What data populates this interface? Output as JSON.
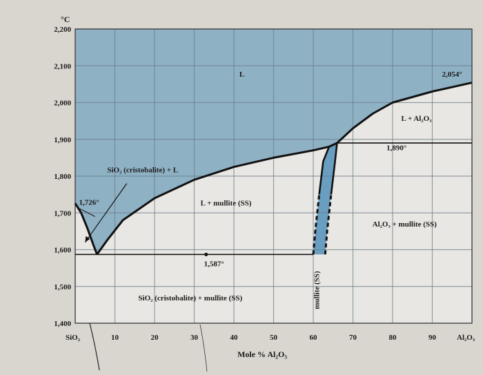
{
  "chart_data": {
    "type": "phase-diagram",
    "title": "",
    "xlabel": "Mole % Al₂O₃",
    "ylabel": "°C",
    "xlim": [
      0,
      100
    ],
    "ylim": [
      1400,
      2200
    ],
    "grid": true,
    "x_tick_labels": [
      {
        "x": 0,
        "label": "SiO₂"
      },
      {
        "x": 10,
        "label": "10"
      },
      {
        "x": 20,
        "label": "20"
      },
      {
        "x": 30,
        "label": "30"
      },
      {
        "x": 40,
        "label": "40"
      },
      {
        "x": 50,
        "label": "50"
      },
      {
        "x": 60,
        "label": "60"
      },
      {
        "x": 70,
        "label": "70"
      },
      {
        "x": 80,
        "label": "80"
      },
      {
        "x": 90,
        "label": "90"
      },
      {
        "x": 100,
        "label": "Al₂O₃"
      }
    ],
    "y_ticks": [
      1400,
      1500,
      1600,
      1700,
      1800,
      1900,
      2000,
      2100,
      2200
    ],
    "y_tick_labels": [
      "1,400",
      "1,500",
      "1,600",
      "1,700",
      "1,800",
      "1,900",
      "2,000",
      "2,100",
      "2,200"
    ],
    "curves": [
      {
        "name": "",
        "points": [
          [
            0,
            1726
          ],
          [
            1.5,
            1700
          ],
          [
            3,
            1660
          ],
          [
            4.5,
            1615
          ],
          [
            5.5,
            1587
          ]
        ]
      },
      {
        "name": "",
        "points": [
          [
            5.5,
            1587
          ],
          [
            8,
            1625
          ],
          [
            12,
            1680
          ],
          [
            20,
            1740
          ],
          [
            30,
            1790
          ],
          [
            40,
            1825
          ],
          [
            50,
            1850
          ],
          [
            60,
            1870
          ],
          [
            64,
            1880
          ],
          [
            66,
            1890
          ]
        ]
      },
      {
        "name": "",
        "points": [
          [
            66,
            1890
          ],
          [
            70,
            1930
          ],
          [
            75,
            1970
          ],
          [
            80,
            2000
          ],
          [
            90,
            2030
          ],
          [
            100,
            2054
          ]
        ]
      },
      {
        "name": "",
        "points": [
          [
            60,
            1587
          ],
          [
            60.5,
            1650
          ],
          [
            61.5,
            1750
          ],
          [
            62.5,
            1840
          ],
          [
            64,
            1880
          ],
          [
            66,
            1890
          ]
        ]
      },
      {
        "name": "",
        "points": [
          [
            63,
            1587
          ],
          [
            63.5,
            1650
          ],
          [
            64.5,
            1750
          ],
          [
            65.5,
            1840
          ],
          [
            66,
            1890
          ]
        ]
      }
    ],
    "horizontal_lines": [
      {
        "value": 1587,
        "x_from": 0,
        "x_to": 60
      },
      {
        "value": 1890,
        "x_from": 66,
        "x_to": 100
      }
    ],
    "region_labels": [
      {
        "text": "L",
        "x": 42,
        "y": 2070
      },
      {
        "text": "2,054°",
        "x": 95,
        "y": 2070
      },
      {
        "text": "L + Al₂O₃",
        "x": 86,
        "y": 1950
      },
      {
        "text": "1,890°",
        "x": 81,
        "y": 1870
      },
      {
        "text": "SiO₂ (cristobalite) + L",
        "x": 17,
        "y": 1810
      },
      {
        "text": "1,726°",
        "x": 3.5,
        "y": 1722
      },
      {
        "text": "L + mullite (SS)",
        "x": 38,
        "y": 1720
      },
      {
        "text": "Al₂O₃ + mullite (SS)",
        "x": 83,
        "y": 1663
      },
      {
        "text": "1,587°",
        "x": 35,
        "y": 1555
      },
      {
        "text": "SiO₂ (cristobalite) + mullite (SS)",
        "x": 29,
        "y": 1462
      },
      {
        "text": "mullite (SS)",
        "x": 61.5,
        "y": 1490
      }
    ],
    "colors": {
      "liquid": "#8fb1c4",
      "two_phase": "#e9e7e3",
      "mullite": "#6a9ec0",
      "grid": "#6b7d8a",
      "curve": "#111111",
      "background": "#d9d6cf"
    }
  }
}
